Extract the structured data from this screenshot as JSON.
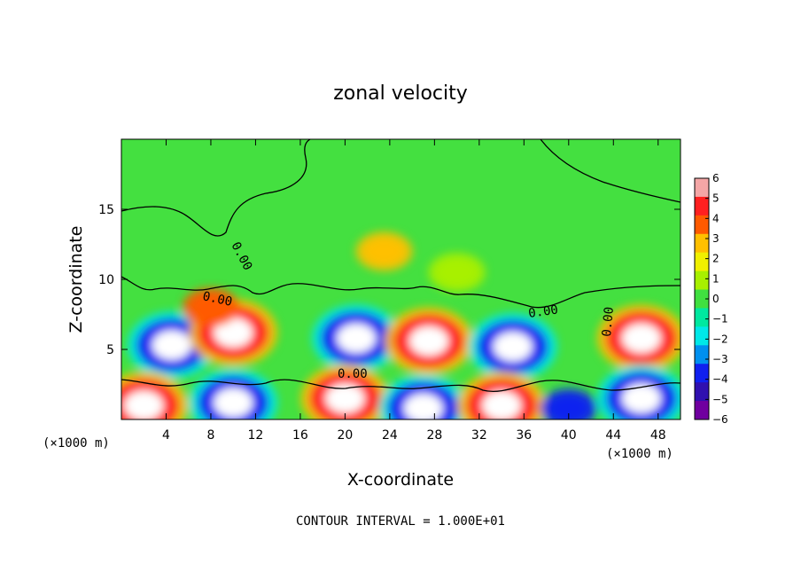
{
  "chart_data": {
    "type": "heatmap",
    "title": "zonal velocity",
    "xlabel": "X-coordinate",
    "ylabel": "Z-coordinate",
    "x_unit_left": "(×1000 m)",
    "x_unit_right": "(×1000 m)",
    "xlim": [
      0,
      50
    ],
    "ylim": [
      0,
      20
    ],
    "x_ticks": [
      4,
      8,
      12,
      16,
      20,
      24,
      28,
      32,
      36,
      40,
      44,
      48
    ],
    "y_ticks": [
      5,
      10,
      15
    ],
    "colorbar": {
      "min": -6,
      "max": 6,
      "ticks": [
        6,
        5,
        4,
        3,
        2,
        1,
        0,
        -1,
        -2,
        -3,
        -4,
        -5,
        -6
      ],
      "colors": [
        "#f4a6a6",
        "#ff2020",
        "#ff5a00",
        "#ffc000",
        "#f0f000",
        "#a8f000",
        "#40e040",
        "#00e8a0",
        "#00e8e8",
        "#0090f0",
        "#1020f0",
        "#3010b0",
        "#7000a0"
      ]
    },
    "contour_label": "0.00",
    "footer": "CONTOUR INTERVAL = 1.000E+01",
    "features": [
      {
        "x": 4.5,
        "z": 5.3,
        "value": -6
      },
      {
        "x": 10,
        "z": 6.2,
        "value": 6
      },
      {
        "x": 21,
        "z": 5.8,
        "value": -6
      },
      {
        "x": 27.5,
        "z": 5.6,
        "value": 6
      },
      {
        "x": 35,
        "z": 5.2,
        "value": -6
      },
      {
        "x": 46.5,
        "z": 5.8,
        "value": 6
      },
      {
        "x": 2,
        "z": 1,
        "value": 6
      },
      {
        "x": 10,
        "z": 1.2,
        "value": -6
      },
      {
        "x": 20,
        "z": 1.5,
        "value": 6
      },
      {
        "x": 27,
        "z": 0.8,
        "value": -6
      },
      {
        "x": 34,
        "z": 1,
        "value": 6
      },
      {
        "x": 40,
        "z": 0.8,
        "value": -4
      },
      {
        "x": 46.5,
        "z": 1.5,
        "value": -6
      },
      {
        "x": 23.5,
        "z": 12,
        "value": 3
      },
      {
        "x": 30,
        "z": 10.5,
        "value": 1
      },
      {
        "x": 8,
        "z": 8,
        "value": 4
      }
    ]
  }
}
